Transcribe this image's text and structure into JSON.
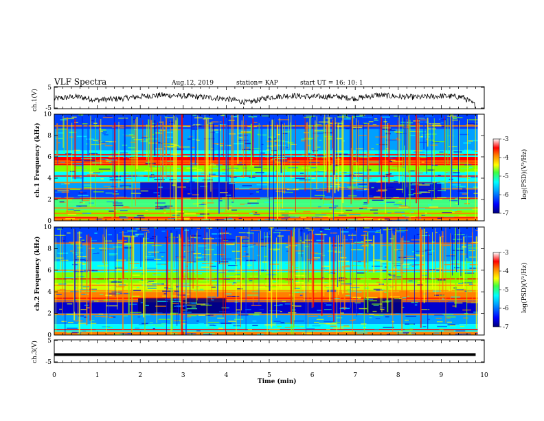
{
  "header": {
    "title": "VLF Spectra",
    "date": "Aug.12, 2019",
    "station": "station= KAP",
    "start": "start  UT =   16: 10: 1"
  },
  "chart_data": [
    {
      "type": "line",
      "panel": "ch1-waveform",
      "ylabel": "ch.1(V)",
      "ylim": [
        -5,
        5
      ],
      "yticks": [
        "5",
        "-5"
      ],
      "xlim": [
        0,
        10
      ],
      "x_minutes": [
        0,
        0.5,
        1,
        1.5,
        2,
        2.5,
        3,
        3.5,
        4,
        4.5,
        5,
        5.5,
        6,
        6.5,
        7,
        7.5,
        8,
        8.5,
        9,
        9.5,
        9.8
      ],
      "y_volts": [
        -0.5,
        0.5,
        -1,
        -0.5,
        0.5,
        1.2,
        0.8,
        0.2,
        -0.5,
        -2.2,
        0.2,
        1.0,
        0.4,
        0.6,
        -0.4,
        1.2,
        0.5,
        0.2,
        0.8,
        0.3,
        -3.5
      ]
    },
    {
      "type": "heatmap",
      "panel": "ch1-spectrogram",
      "ylabel": "ch.1 Frequency (kHz)",
      "ylim": [
        0,
        10
      ],
      "yticks": [
        "0",
        "2",
        "4",
        "6",
        "8",
        "10"
      ],
      "xlim": [
        0,
        10
      ],
      "colorbar": {
        "label": "log(PSD)(V²/Hz)",
        "range": [
          -7,
          -3
        ],
        "ticks": [
          "-3",
          "-4",
          "-5",
          "-6",
          "-7"
        ]
      }
    },
    {
      "type": "heatmap",
      "panel": "ch2-spectrogram",
      "ylabel": "ch.2 Frequency (kHz)",
      "ylim": [
        0,
        10
      ],
      "yticks": [
        "0",
        "2",
        "4",
        "6",
        "8",
        "10"
      ],
      "xlim": [
        0,
        10
      ],
      "colorbar": {
        "label": "log(PSD)(V²/Hz)",
        "range": [
          -7,
          -3
        ],
        "ticks": [
          "-3",
          "-4",
          "-5",
          "-6",
          "-7"
        ]
      }
    },
    {
      "type": "line",
      "panel": "ch3-waveform",
      "ylabel": "ch.3(V)",
      "ylim": [
        -5,
        5
      ],
      "yticks": [
        "5",
        "-5"
      ],
      "xlim": [
        0,
        10
      ],
      "x_minutes": [
        0,
        9.8
      ],
      "y_volts": [
        -1.5,
        -1.5
      ]
    }
  ],
  "x_axis": {
    "label": "Time  (min)",
    "ticks": [
      "0",
      "1",
      "2",
      "3",
      "4",
      "5",
      "6",
      "7",
      "8",
      "9",
      "10"
    ]
  },
  "colors": {
    "colormap": [
      "#00007a",
      "#0000d0",
      "#0040ff",
      "#00a0ff",
      "#00ffff",
      "#40ff80",
      "#80ff00",
      "#d0ff00",
      "#ffff00",
      "#ff8000",
      "#ff0000",
      "#ffffff"
    ]
  }
}
